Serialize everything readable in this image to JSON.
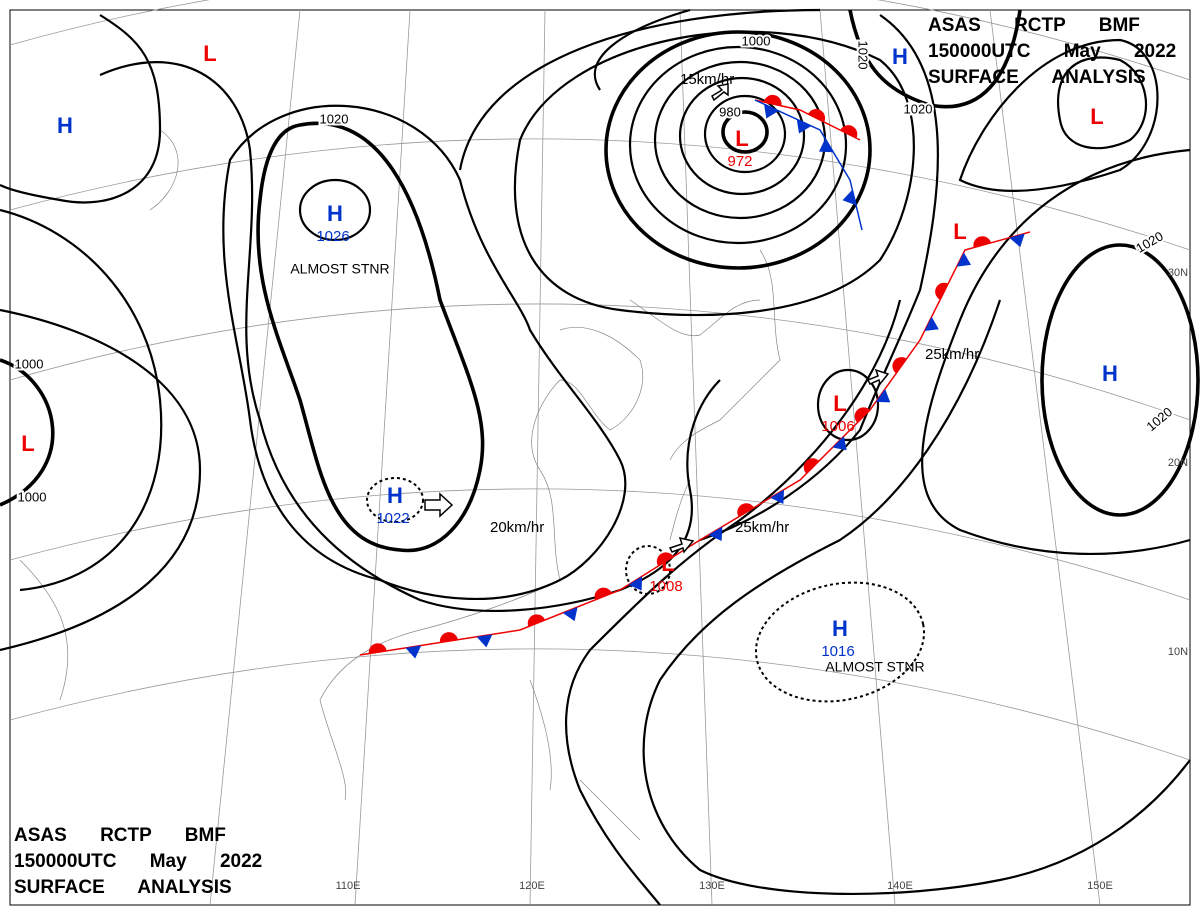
{
  "header_top_right": [
    "ASAS RCTP BMF",
    "150000UTC May 2022",
    "SURFACE ANALYSIS"
  ],
  "header_bottom_left": [
    "ASAS RCTP BMF",
    "150000UTC May 2022",
    "SURFACE ANALYSIS"
  ],
  "pressure_systems": [
    {
      "symbol": "L"
    },
    {
      "symbol": "H"
    },
    {
      "symbol": "H",
      "value": 1026
    },
    {
      "symbol": "H",
      "value": 1022
    },
    {
      "symbol": "L",
      "value": 972
    },
    {
      "symbol": "L",
      "value": 1006
    },
    {
      "symbol": "L",
      "value": 1008
    },
    {
      "symbol": "H",
      "value": 1016
    },
    {
      "symbol": "H"
    },
    {
      "symbol": "L"
    },
    {
      "symbol": "L"
    },
    {
      "symbol": "H"
    },
    {
      "symbol": "L"
    }
  ],
  "isobar_labels": [
    1020,
    1000,
    1000,
    1000,
    1020,
    1020,
    1020,
    1020,
    980
  ],
  "motion_labels": [
    "15km/hr",
    "20km/hr",
    "25km/hr",
    "25km/hr"
  ],
  "notes": [
    "ALMOST STNR",
    "ALMOST STNR"
  ],
  "longitude_labels": [
    "110E",
    "120E",
    "130E",
    "140E",
    "150E"
  ],
  "latitude_labels": [
    "30N",
    "20N",
    "10N"
  ]
}
